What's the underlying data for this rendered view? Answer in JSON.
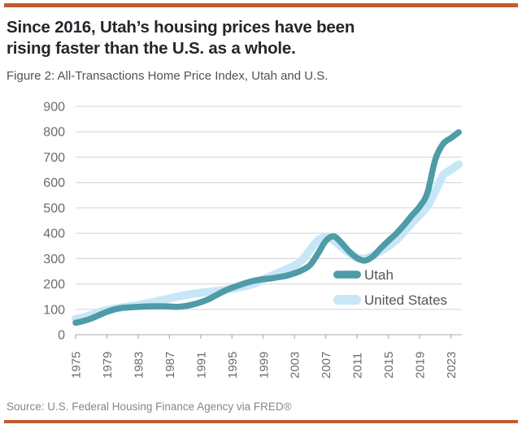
{
  "page": {
    "accent_color": "#c15b2e",
    "title_lines": [
      "Since 2016, Utah’s housing prices have been",
      "rising faster than the U.S. as a whole."
    ],
    "subtitle": "Figure 2: All-Transactions Home Price Index, Utah and U.S.",
    "source": "Source: U.S. Federal Housing Finance Agency via FRED®"
  },
  "chart_data": {
    "type": "line",
    "title": "Figure 2: All-Transactions Home Price Index, Utah and U.S.",
    "xlabel": "",
    "ylabel": "",
    "ylim": [
      0,
      900
    ],
    "yticks": [
      0,
      100,
      200,
      300,
      400,
      500,
      600,
      700,
      800,
      900
    ],
    "xticks": [
      1975,
      1979,
      1983,
      1987,
      1991,
      1995,
      1999,
      2003,
      2007,
      2011,
      2015,
      2019,
      2023
    ],
    "grid": "horizontal",
    "legend_position": "inside-right",
    "x": [
      1975,
      1976,
      1977,
      1978,
      1979,
      1980,
      1981,
      1982,
      1983,
      1984,
      1985,
      1986,
      1987,
      1988,
      1989,
      1990,
      1991,
      1992,
      1993,
      1994,
      1995,
      1996,
      1997,
      1998,
      1999,
      2000,
      2001,
      2002,
      2003,
      2004,
      2005,
      2006,
      2007,
      2008,
      2009,
      2010,
      2011,
      2012,
      2013,
      2014,
      2015,
      2016,
      2017,
      2018,
      2019,
      2020,
      2021,
      2022,
      2023,
      2024
    ],
    "series": [
      {
        "name": "Utah",
        "color": "#4f9ba8",
        "line_width": 7.5,
        "values": [
          47,
          54,
          64,
          77,
          90,
          100,
          106,
          108,
          110,
          111,
          112,
          112,
          111,
          110,
          113,
          119,
          128,
          140,
          156,
          172,
          185,
          196,
          206,
          214,
          219,
          222,
          227,
          233,
          242,
          255,
          275,
          320,
          370,
          388,
          362,
          328,
          302,
          292,
          308,
          340,
          370,
          398,
          432,
          470,
          505,
          560,
          690,
          752,
          775,
          798
        ]
      },
      {
        "name": "United States",
        "color": "#c7e7f7",
        "line_width": 10,
        "values": [
          62,
          68,
          78,
          89,
          97,
          103,
          108,
          112,
          117,
          123,
          129,
          136,
          143,
          150,
          156,
          161,
          165,
          169,
          172,
          176,
          181,
          187,
          194,
          203,
          218,
          232,
          245,
          258,
          272,
          295,
          335,
          372,
          383,
          372,
          346,
          322,
          303,
          300,
          312,
          330,
          348,
          372,
          405,
          440,
          472,
          508,
          565,
          628,
          650,
          672
        ]
      }
    ]
  }
}
